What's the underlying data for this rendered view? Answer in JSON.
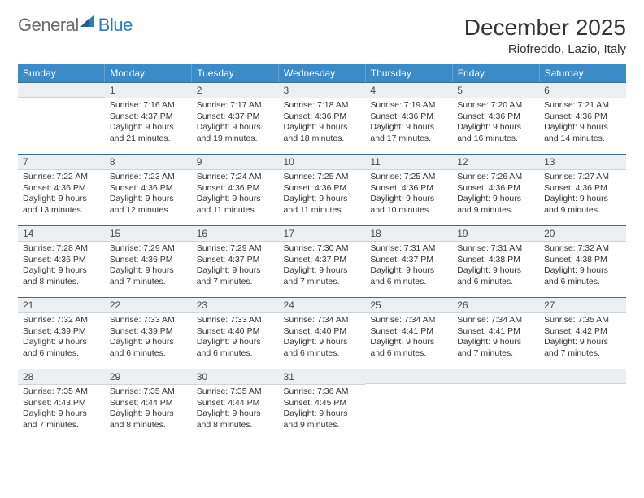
{
  "logo": {
    "text1": "General",
    "text2": "Blue"
  },
  "title": "December 2025",
  "location": "Riofreddo, Lazio, Italy",
  "colors": {
    "header_bg": "#3b8bc9",
    "header_text": "#ffffff",
    "daynum_bg": "#eceff1",
    "row_border": "#3b6f99",
    "logo_gray": "#6b6b6b",
    "logo_blue": "#2b7bbf"
  },
  "weekdays": [
    "Sunday",
    "Monday",
    "Tuesday",
    "Wednesday",
    "Thursday",
    "Friday",
    "Saturday"
  ],
  "weeks": [
    [
      null,
      {
        "n": "1",
        "sr": "Sunrise: 7:16 AM",
        "ss": "Sunset: 4:37 PM",
        "dl": "Daylight: 9 hours and 21 minutes."
      },
      {
        "n": "2",
        "sr": "Sunrise: 7:17 AM",
        "ss": "Sunset: 4:37 PM",
        "dl": "Daylight: 9 hours and 19 minutes."
      },
      {
        "n": "3",
        "sr": "Sunrise: 7:18 AM",
        "ss": "Sunset: 4:36 PM",
        "dl": "Daylight: 9 hours and 18 minutes."
      },
      {
        "n": "4",
        "sr": "Sunrise: 7:19 AM",
        "ss": "Sunset: 4:36 PM",
        "dl": "Daylight: 9 hours and 17 minutes."
      },
      {
        "n": "5",
        "sr": "Sunrise: 7:20 AM",
        "ss": "Sunset: 4:36 PM",
        "dl": "Daylight: 9 hours and 16 minutes."
      },
      {
        "n": "6",
        "sr": "Sunrise: 7:21 AM",
        "ss": "Sunset: 4:36 PM",
        "dl": "Daylight: 9 hours and 14 minutes."
      }
    ],
    [
      {
        "n": "7",
        "sr": "Sunrise: 7:22 AM",
        "ss": "Sunset: 4:36 PM",
        "dl": "Daylight: 9 hours and 13 minutes."
      },
      {
        "n": "8",
        "sr": "Sunrise: 7:23 AM",
        "ss": "Sunset: 4:36 PM",
        "dl": "Daylight: 9 hours and 12 minutes."
      },
      {
        "n": "9",
        "sr": "Sunrise: 7:24 AM",
        "ss": "Sunset: 4:36 PM",
        "dl": "Daylight: 9 hours and 11 minutes."
      },
      {
        "n": "10",
        "sr": "Sunrise: 7:25 AM",
        "ss": "Sunset: 4:36 PM",
        "dl": "Daylight: 9 hours and 11 minutes."
      },
      {
        "n": "11",
        "sr": "Sunrise: 7:25 AM",
        "ss": "Sunset: 4:36 PM",
        "dl": "Daylight: 9 hours and 10 minutes."
      },
      {
        "n": "12",
        "sr": "Sunrise: 7:26 AM",
        "ss": "Sunset: 4:36 PM",
        "dl": "Daylight: 9 hours and 9 minutes."
      },
      {
        "n": "13",
        "sr": "Sunrise: 7:27 AM",
        "ss": "Sunset: 4:36 PM",
        "dl": "Daylight: 9 hours and 9 minutes."
      }
    ],
    [
      {
        "n": "14",
        "sr": "Sunrise: 7:28 AM",
        "ss": "Sunset: 4:36 PM",
        "dl": "Daylight: 9 hours and 8 minutes."
      },
      {
        "n": "15",
        "sr": "Sunrise: 7:29 AM",
        "ss": "Sunset: 4:36 PM",
        "dl": "Daylight: 9 hours and 7 minutes."
      },
      {
        "n": "16",
        "sr": "Sunrise: 7:29 AM",
        "ss": "Sunset: 4:37 PM",
        "dl": "Daylight: 9 hours and 7 minutes."
      },
      {
        "n": "17",
        "sr": "Sunrise: 7:30 AM",
        "ss": "Sunset: 4:37 PM",
        "dl": "Daylight: 9 hours and 7 minutes."
      },
      {
        "n": "18",
        "sr": "Sunrise: 7:31 AM",
        "ss": "Sunset: 4:37 PM",
        "dl": "Daylight: 9 hours and 6 minutes."
      },
      {
        "n": "19",
        "sr": "Sunrise: 7:31 AM",
        "ss": "Sunset: 4:38 PM",
        "dl": "Daylight: 9 hours and 6 minutes."
      },
      {
        "n": "20",
        "sr": "Sunrise: 7:32 AM",
        "ss": "Sunset: 4:38 PM",
        "dl": "Daylight: 9 hours and 6 minutes."
      }
    ],
    [
      {
        "n": "21",
        "sr": "Sunrise: 7:32 AM",
        "ss": "Sunset: 4:39 PM",
        "dl": "Daylight: 9 hours and 6 minutes."
      },
      {
        "n": "22",
        "sr": "Sunrise: 7:33 AM",
        "ss": "Sunset: 4:39 PM",
        "dl": "Daylight: 9 hours and 6 minutes."
      },
      {
        "n": "23",
        "sr": "Sunrise: 7:33 AM",
        "ss": "Sunset: 4:40 PM",
        "dl": "Daylight: 9 hours and 6 minutes."
      },
      {
        "n": "24",
        "sr": "Sunrise: 7:34 AM",
        "ss": "Sunset: 4:40 PM",
        "dl": "Daylight: 9 hours and 6 minutes."
      },
      {
        "n": "25",
        "sr": "Sunrise: 7:34 AM",
        "ss": "Sunset: 4:41 PM",
        "dl": "Daylight: 9 hours and 6 minutes."
      },
      {
        "n": "26",
        "sr": "Sunrise: 7:34 AM",
        "ss": "Sunset: 4:41 PM",
        "dl": "Daylight: 9 hours and 7 minutes."
      },
      {
        "n": "27",
        "sr": "Sunrise: 7:35 AM",
        "ss": "Sunset: 4:42 PM",
        "dl": "Daylight: 9 hours and 7 minutes."
      }
    ],
    [
      {
        "n": "28",
        "sr": "Sunrise: 7:35 AM",
        "ss": "Sunset: 4:43 PM",
        "dl": "Daylight: 9 hours and 7 minutes."
      },
      {
        "n": "29",
        "sr": "Sunrise: 7:35 AM",
        "ss": "Sunset: 4:44 PM",
        "dl": "Daylight: 9 hours and 8 minutes."
      },
      {
        "n": "30",
        "sr": "Sunrise: 7:35 AM",
        "ss": "Sunset: 4:44 PM",
        "dl": "Daylight: 9 hours and 8 minutes."
      },
      {
        "n": "31",
        "sr": "Sunrise: 7:36 AM",
        "ss": "Sunset: 4:45 PM",
        "dl": "Daylight: 9 hours and 9 minutes."
      },
      null,
      null,
      null
    ]
  ]
}
